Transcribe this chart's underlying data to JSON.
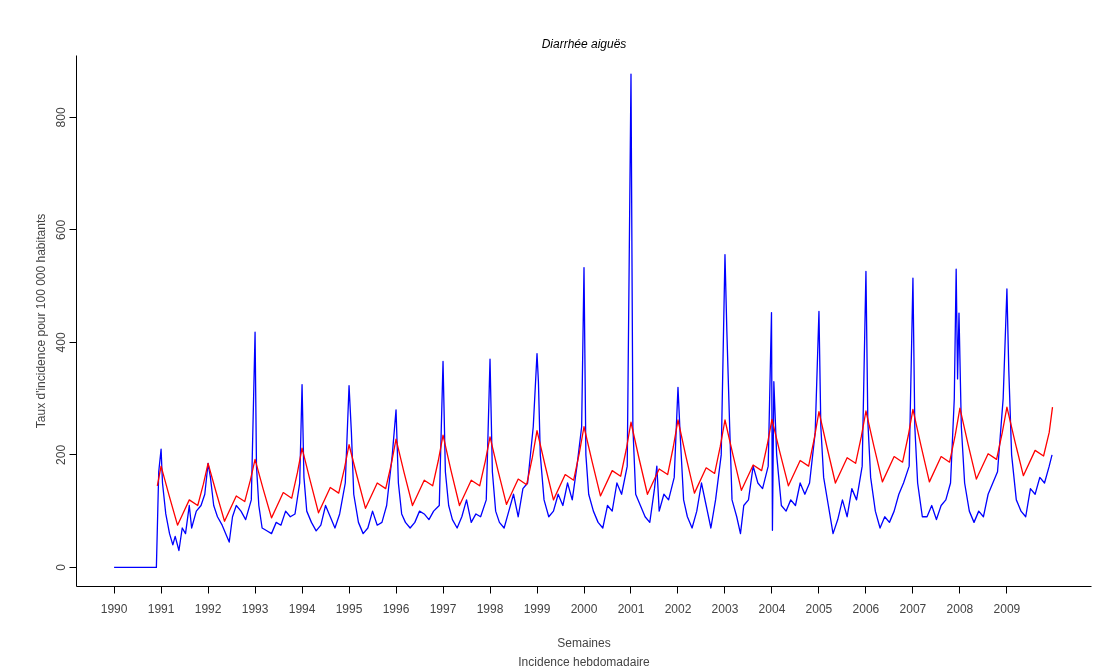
{
  "chart_data": {
    "type": "line",
    "title": "Diarrhée aiguës",
    "xlabel": "Semaines",
    "ylabel": "Taux d'incidence pour 100 000 habitants",
    "annotations": [
      "Incidence hebdomadaire"
    ],
    "xlim": [
      1989.2,
      2010.8
    ],
    "ylim": [
      -34,
      910
    ],
    "xticks": [
      1990,
      1991,
      1992,
      1993,
      1994,
      1995,
      1996,
      1997,
      1998,
      1999,
      2000,
      2001,
      2002,
      2003,
      2004,
      2005,
      2006,
      2007,
      2008,
      2009
    ],
    "yticks": [
      0,
      200,
      400,
      600,
      800
    ],
    "grid": false,
    "line_style": "solid",
    "marker": "none",
    "series": [
      {
        "color": "#0000ff",
        "x": [
          1990.0,
          1990.9,
          1990.95,
          1991.0,
          1991.03,
          1991.1,
          1991.18,
          1991.25,
          1991.3,
          1991.38,
          1991.45,
          1991.52,
          1991.6,
          1991.65,
          1991.75,
          1991.85,
          1991.93,
          1992.0,
          1992.05,
          1992.12,
          1992.2,
          1992.3,
          1992.4,
          1992.45,
          1992.52,
          1992.6,
          1992.7,
          1992.8,
          1992.92,
          1993.0,
          1993.03,
          1993.08,
          1993.15,
          1993.25,
          1993.35,
          1993.45,
          1993.55,
          1993.65,
          1993.75,
          1993.85,
          1993.95,
          1994.0,
          1994.04,
          1994.1,
          1994.2,
          1994.3,
          1994.4,
          1994.5,
          1994.6,
          1994.7,
          1994.8,
          1994.92,
          1995.0,
          1995.05,
          1995.1,
          1995.2,
          1995.3,
          1995.4,
          1995.5,
          1995.6,
          1995.7,
          1995.8,
          1995.92,
          1996.0,
          1996.05,
          1996.12,
          1996.2,
          1996.3,
          1996.4,
          1996.5,
          1996.6,
          1996.7,
          1996.8,
          1996.92,
          1997.0,
          1997.05,
          1997.12,
          1997.2,
          1997.3,
          1997.4,
          1997.5,
          1997.6,
          1997.7,
          1997.8,
          1997.92,
          1998.0,
          1998.05,
          1998.12,
          1998.2,
          1998.3,
          1998.4,
          1998.5,
          1998.6,
          1998.7,
          1998.8,
          1998.92,
          1999.0,
          1999.03,
          1999.07,
          1999.15,
          1999.25,
          1999.35,
          1999.45,
          1999.55,
          1999.65,
          1999.75,
          1999.85,
          1999.95,
          2000.0,
          2000.04,
          2000.1,
          2000.2,
          2000.3,
          2000.4,
          2000.5,
          2000.6,
          2000.7,
          2000.8,
          2000.92,
          2001.0,
          2001.04,
          2001.1,
          2001.2,
          2001.3,
          2001.4,
          2001.5,
          2001.55,
          2001.6,
          2001.7,
          2001.8,
          2001.92,
          2002.0,
          2002.05,
          2002.12,
          2002.2,
          2002.3,
          2002.4,
          2002.5,
          2002.6,
          2002.7,
          2002.8,
          2002.92,
          2003.0,
          2003.04,
          2003.1,
          2003.15,
          2003.25,
          2003.33,
          2003.4,
          2003.5,
          2003.6,
          2003.7,
          2003.8,
          2003.92,
          2003.99,
          2004.01,
          2004.04,
          2004.1,
          2004.2,
          2004.3,
          2004.4,
          2004.5,
          2004.6,
          2004.7,
          2004.8,
          2004.92,
          2005.0,
          2005.04,
          2005.1,
          2005.2,
          2005.3,
          2005.4,
          2005.5,
          2005.6,
          2005.7,
          2005.8,
          2005.92,
          2006.0,
          2006.04,
          2006.1,
          2006.2,
          2006.3,
          2006.4,
          2006.5,
          2006.6,
          2006.7,
          2006.8,
          2006.92,
          2007.0,
          2007.04,
          2007.1,
          2007.2,
          2007.3,
          2007.4,
          2007.5,
          2007.6,
          2007.7,
          2007.8,
          2007.88,
          2007.92,
          2007.95,
          2007.98,
          2008.03,
          2008.1,
          2008.2,
          2008.3,
          2008.4,
          2008.5,
          2008.6,
          2008.7,
          2008.8,
          2008.92,
          2009.0,
          2009.04,
          2009.1,
          2009.2,
          2009.3,
          2009.4,
          2009.5,
          2009.6,
          2009.7,
          2009.8,
          2009.9,
          2009.96
        ],
        "values": [
          0,
          0,
          170,
          210,
          150,
          95,
          60,
          40,
          55,
          30,
          70,
          60,
          110,
          70,
          100,
          110,
          130,
          185,
          160,
          110,
          90,
          75,
          55,
          45,
          90,
          110,
          100,
          85,
          120,
          418,
          180,
          110,
          70,
          65,
          60,
          80,
          75,
          100,
          90,
          95,
          150,
          325,
          160,
          100,
          80,
          65,
          75,
          110,
          90,
          70,
          95,
          150,
          323,
          240,
          130,
          80,
          60,
          70,
          100,
          75,
          80,
          110,
          200,
          280,
          150,
          95,
          80,
          70,
          80,
          100,
          95,
          85,
          100,
          110,
          366,
          170,
          110,
          85,
          70,
          90,
          120,
          80,
          95,
          90,
          120,
          370,
          170,
          100,
          80,
          70,
          100,
          130,
          90,
          140,
          150,
          250,
          380,
          330,
          200,
          120,
          90,
          100,
          130,
          110,
          150,
          120,
          180,
          250,
          533,
          200,
          130,
          100,
          80,
          70,
          110,
          100,
          150,
          130,
          180,
          877,
          250,
          130,
          110,
          90,
          80,
          140,
          180,
          100,
          130,
          120,
          160,
          320,
          230,
          120,
          90,
          70,
          100,
          150,
          110,
          70,
          120,
          200,
          556,
          420,
          250,
          120,
          90,
          60,
          110,
          120,
          180,
          150,
          140,
          180,
          453,
          66,
          330,
          200,
          110,
          100,
          120,
          110,
          150,
          130,
          150,
          240,
          455,
          250,
          160,
          110,
          60,
          85,
          120,
          90,
          140,
          120,
          180,
          526,
          260,
          160,
          100,
          70,
          90,
          80,
          100,
          130,
          150,
          180,
          514,
          250,
          150,
          90,
          90,
          110,
          85,
          110,
          120,
          150,
          300,
          530,
          335,
          452,
          250,
          150,
          100,
          80,
          100,
          90,
          130,
          150,
          170,
          300,
          495,
          350,
          200,
          120,
          100,
          90,
          140,
          130,
          160,
          150,
          180,
          200
        ]
      },
      {
        "color": "#ff0000",
        "x": [
          1990.92,
          1991.0,
          1991.17,
          1991.35,
          1991.6,
          1991.78,
          1991.9,
          1992.0,
          1992.17,
          1992.35,
          1992.6,
          1992.78,
          1992.9,
          1993.0,
          1993.17,
          1993.35,
          1993.6,
          1993.78,
          1993.9,
          1994.0,
          1994.17,
          1994.35,
          1994.6,
          1994.78,
          1994.9,
          1995.0,
          1995.17,
          1995.35,
          1995.6,
          1995.78,
          1995.9,
          1996.0,
          1996.17,
          1996.35,
          1996.6,
          1996.78,
          1996.9,
          1997.0,
          1997.17,
          1997.35,
          1997.6,
          1997.78,
          1997.9,
          1998.0,
          1998.17,
          1998.35,
          1998.6,
          1998.78,
          1998.9,
          1999.0,
          1999.17,
          1999.35,
          1999.6,
          1999.78,
          1999.9,
          2000.0,
          2000.17,
          2000.35,
          2000.6,
          2000.78,
          2000.9,
          2001.0,
          2001.17,
          2001.35,
          2001.6,
          2001.78,
          2001.9,
          2002.0,
          2002.17,
          2002.35,
          2002.6,
          2002.78,
          2002.9,
          2003.0,
          2003.17,
          2003.35,
          2003.6,
          2003.78,
          2003.9,
          2004.0,
          2004.17,
          2004.35,
          2004.6,
          2004.78,
          2004.9,
          2005.0,
          2005.17,
          2005.35,
          2005.6,
          2005.78,
          2005.9,
          2006.0,
          2006.17,
          2006.35,
          2006.6,
          2006.78,
          2006.9,
          2007.0,
          2007.17,
          2007.35,
          2007.6,
          2007.78,
          2007.9,
          2008.0,
          2008.17,
          2008.35,
          2008.6,
          2008.78,
          2008.9,
          2009.0,
          2009.17,
          2009.35,
          2009.6,
          2009.78,
          2009.9,
          2009.97
        ],
        "values": [
          145,
          180,
          128,
          75,
          120,
          110,
          148,
          185,
          134,
          82,
          127,
          117,
          155,
          192,
          140,
          88,
          133,
          123,
          168,
          212,
          155,
          97,
          142,
          132,
          175,
          218,
          162,
          105,
          150,
          140,
          184,
          228,
          169,
          110,
          155,
          145,
          190,
          235,
          172,
          110,
          155,
          145,
          189,
          232,
          172,
          112,
          157,
          147,
          195,
          243,
          182,
          120,
          165,
          155,
          203,
          250,
          189,
          127,
          172,
          162,
          210,
          258,
          194,
          130,
          175,
          165,
          214,
          262,
          197,
          132,
          177,
          167,
          215,
          262,
          200,
          137,
          182,
          172,
          218,
          263,
          204,
          145,
          190,
          180,
          229,
          277,
          214,
          150,
          195,
          185,
          232,
          278,
          215,
          152,
          197,
          187,
          234,
          281,
          217,
          152,
          197,
          187,
          235,
          283,
          220,
          157,
          202,
          192,
          239,
          285,
          224,
          163,
          208,
          198,
          240,
          285
        ]
      }
    ]
  }
}
